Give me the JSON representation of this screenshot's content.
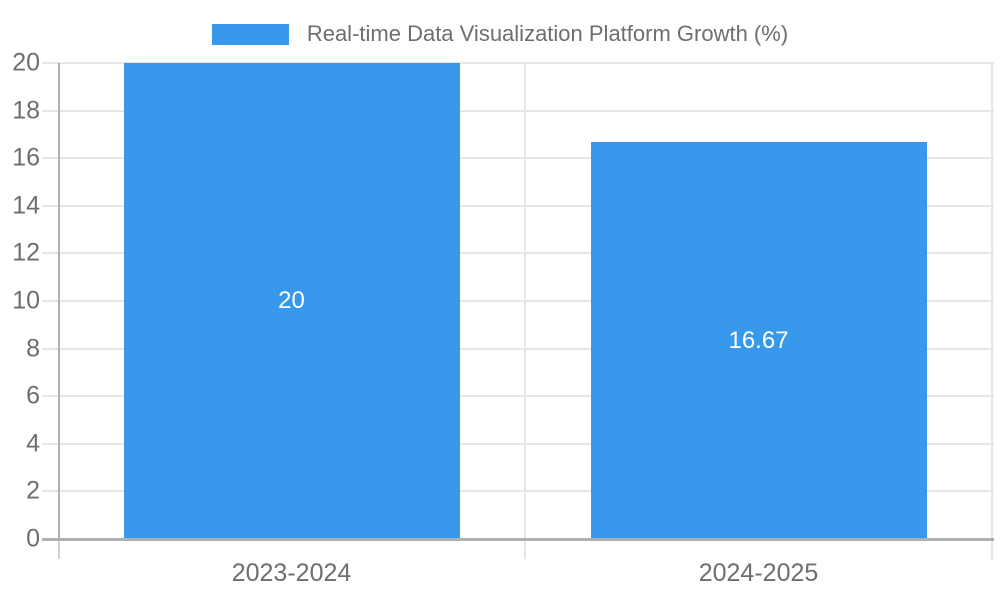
{
  "chart_data": {
    "type": "bar",
    "title": "Real-time Data Visualization Platform Growth (%)",
    "categories": [
      "2023-2024",
      "2024-2025"
    ],
    "values": [
      20,
      16.67
    ],
    "value_labels": [
      "20",
      "16.67"
    ],
    "ylim": [
      0,
      20
    ],
    "ytick_step": 2,
    "ytick_labels": [
      "0",
      "2",
      "4",
      "6",
      "8",
      "10",
      "12",
      "14",
      "16",
      "18",
      "20"
    ],
    "xlabel": "",
    "ylabel": "",
    "grid": "on",
    "legend_position": "top-center",
    "colors": {
      "bar": "#3899EC",
      "grid": "#e6e6e6",
      "axis": "#b0b0b0",
      "tick_text": "#6e6e6e",
      "value_text": "#ffffff",
      "background": "#ffffff"
    }
  }
}
